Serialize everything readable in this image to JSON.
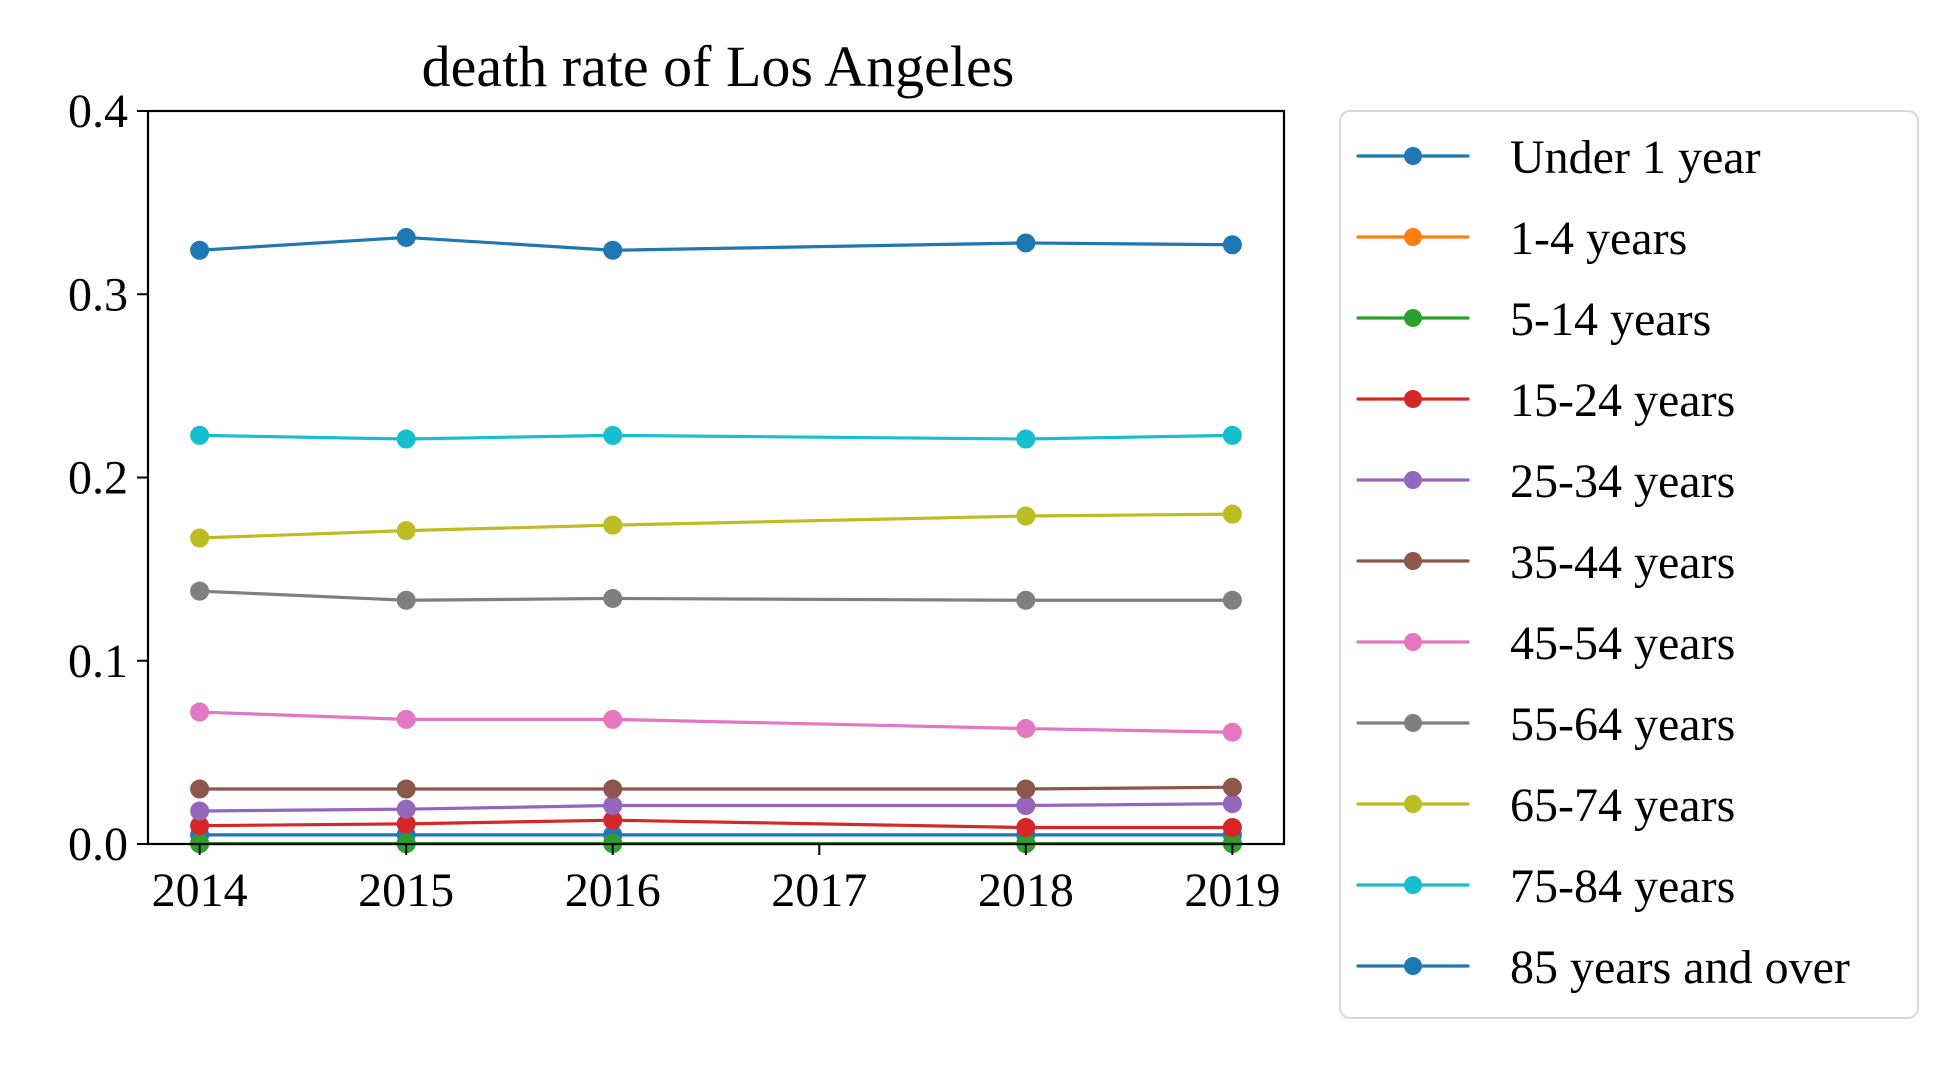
{
  "chart_data": {
    "type": "line",
    "title": "death rate of Los Angeles",
    "xlabel": "",
    "ylabel": "",
    "x": [
      2014,
      2015,
      2016,
      2018,
      2019
    ],
    "x_ticks": [
      "2014",
      "2015",
      "2016",
      "2017",
      "2018",
      "2019"
    ],
    "y_ticks": [
      "0.0",
      "0.1",
      "0.2",
      "0.3",
      "0.4"
    ],
    "xlim": [
      2013.75,
      2019.25
    ],
    "ylim": [
      0.0,
      0.4
    ],
    "grid": false,
    "legend_position": "outside-right",
    "series": [
      {
        "name": "Under 1 year",
        "color": "#1f77b4",
        "values": [
          0.005,
          0.005,
          0.005,
          0.005,
          0.005
        ]
      },
      {
        "name": "1-4 years",
        "color": "#ff7f0e",
        "values": [
          0.0003,
          0.0003,
          0.0003,
          0.0003,
          0.0003
        ]
      },
      {
        "name": "5-14 years",
        "color": "#2ca02c",
        "values": [
          0.0002,
          0.0002,
          0.0002,
          0.0002,
          0.0002
        ]
      },
      {
        "name": "15-24 years",
        "color": "#d62728",
        "values": [
          0.01,
          0.011,
          0.013,
          0.009,
          0.009
        ]
      },
      {
        "name": "25-34 years",
        "color": "#9467bd",
        "values": [
          0.018,
          0.019,
          0.021,
          0.021,
          0.022
        ]
      },
      {
        "name": "35-44 years",
        "color": "#8c564b",
        "values": [
          0.03,
          0.03,
          0.03,
          0.03,
          0.031
        ]
      },
      {
        "name": "45-54 years",
        "color": "#e377c2",
        "values": [
          0.072,
          0.068,
          0.068,
          0.063,
          0.061
        ]
      },
      {
        "name": "55-64 years",
        "color": "#7f7f7f",
        "values": [
          0.138,
          0.133,
          0.134,
          0.133,
          0.133
        ]
      },
      {
        "name": "65-74 years",
        "color": "#bcbd22",
        "values": [
          0.167,
          0.171,
          0.174,
          0.179,
          0.18
        ]
      },
      {
        "name": "75-84 years",
        "color": "#17becf",
        "values": [
          0.223,
          0.221,
          0.223,
          0.221,
          0.223
        ]
      },
      {
        "name": "85 years and over",
        "color": "#1f77b4",
        "values": [
          0.324,
          0.331,
          0.324,
          0.328,
          0.327
        ]
      }
    ]
  }
}
